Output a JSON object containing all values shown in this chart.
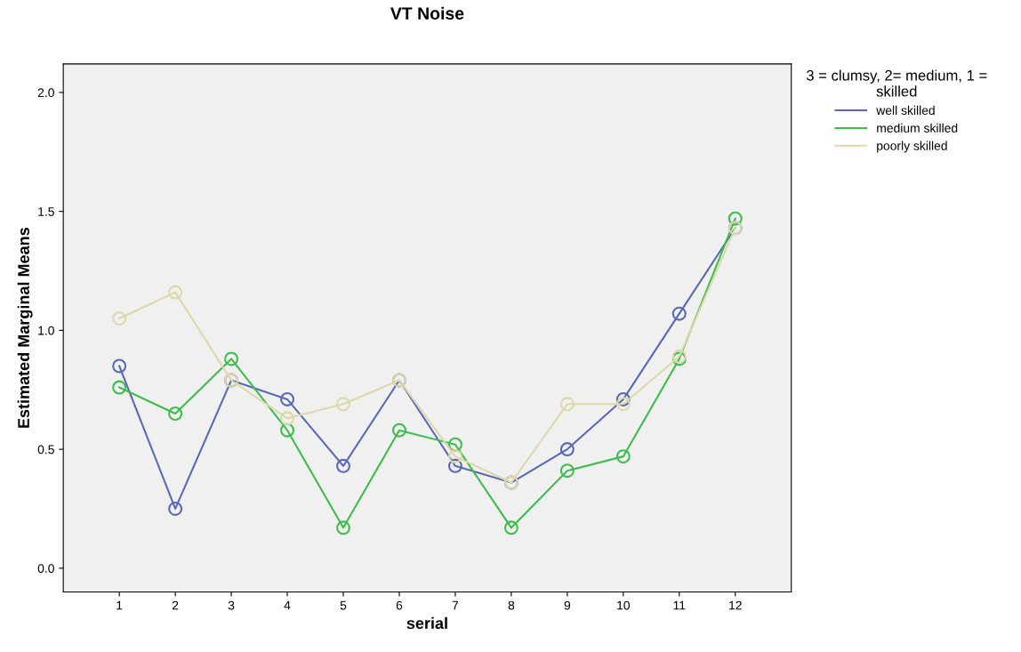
{
  "chart_data": {
    "type": "line",
    "title": "VT Noise",
    "xlabel": "serial",
    "ylabel": "Estimated Marginal Means",
    "legend_title": "3 = clumsy, 2= medium, 1 =\nskilled",
    "categories": [
      "1",
      "2",
      "3",
      "4",
      "5",
      "6",
      "7",
      "8",
      "9",
      "10",
      "11",
      "12"
    ],
    "series": [
      {
        "name": "well skilled",
        "color": "#5a68b8",
        "values": [
          0.85,
          0.25,
          0.79,
          0.71,
          0.43,
          0.79,
          0.43,
          0.36,
          0.5,
          0.71,
          1.07,
          1.43
        ]
      },
      {
        "name": "medium skilled",
        "color": "#3cbe4c",
        "values": [
          0.76,
          0.65,
          0.88,
          0.58,
          0.17,
          0.58,
          0.52,
          0.17,
          0.41,
          0.47,
          0.88,
          1.47
        ]
      },
      {
        "name": "poorly skilled",
        "color": "#dcd8a8",
        "values": [
          1.05,
          1.16,
          0.79,
          0.63,
          0.69,
          0.79,
          0.47,
          0.36,
          0.69,
          0.69,
          0.89,
          1.43
        ]
      }
    ],
    "ylim": [
      -0.1,
      2.12
    ],
    "yticks": [
      {
        "value": 0,
        "label": "0.0"
      },
      {
        "value": 0.5,
        "label": "0.5"
      },
      {
        "value": 1,
        "label": "1.0"
      },
      {
        "value": 1.5,
        "label": "1.5"
      },
      {
        "value": 2,
        "label": "2.0"
      }
    ],
    "grid": false,
    "legend": "top right",
    "marker": "circle",
    "line_style": "solid"
  }
}
